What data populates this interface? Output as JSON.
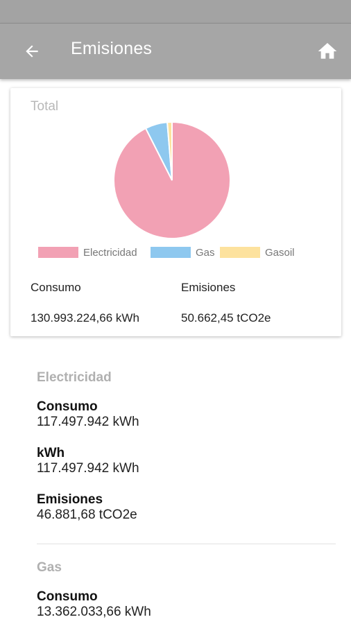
{
  "header": {
    "title": "Emisiones",
    "back_icon": "arrow-left-icon",
    "home_icon": "home-icon"
  },
  "colors": {
    "appbar": "#a6a6a6",
    "electricidad": "#f2a1b4",
    "gas": "#8ec8ef",
    "gasoil": "#fde29e"
  },
  "summary": {
    "title": "Total",
    "consumo_label": "Consumo",
    "consumo_value": "130.993.224,66 kWh",
    "emisiones_label": "Emisiones",
    "emisiones_value": "50.662,45 tCO2e"
  },
  "chart_data": {
    "type": "pie",
    "categories": [
      "Electricidad",
      "Gas",
      "Gasoil"
    ],
    "values": [
      46881.68,
      3120,
      660.77
    ],
    "legend": "bottom"
  },
  "sections": [
    {
      "title": "Electricidad",
      "fields": [
        {
          "label": "Consumo",
          "value": "117.497.942 kWh"
        },
        {
          "label": "kWh",
          "value": "117.497.942 kWh"
        },
        {
          "label": "Emisiones",
          "value": "46.881,68 tCO2e"
        }
      ]
    },
    {
      "title": "Gas",
      "fields": [
        {
          "label": "Consumo",
          "value": "13.362.033,66 kWh"
        }
      ]
    }
  ]
}
